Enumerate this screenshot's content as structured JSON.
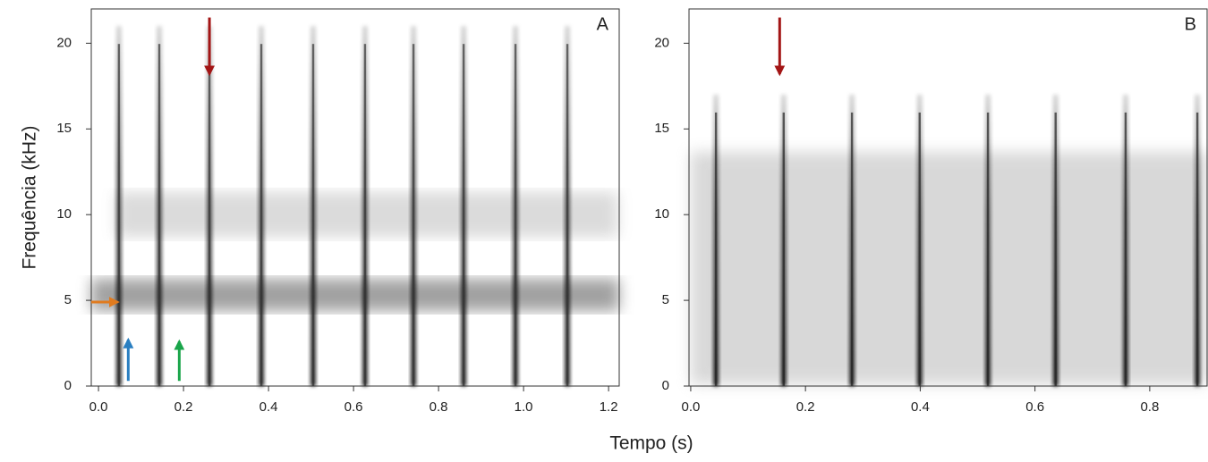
{
  "chart_data": [
    {
      "type": "spectrogram",
      "panel_label": "A",
      "ylabel": "Frequência (kHz)",
      "xlim": [
        -0.017,
        1.225
      ],
      "ylim": [
        0,
        22
      ],
      "xticks": [
        {
          "value": 0,
          "label": "0.0"
        },
        0.2,
        0.4,
        0.6,
        0.8,
        {
          "value": 1,
          "label": "1.0"
        },
        1.2
      ],
      "yticks": [
        0,
        5,
        10,
        15,
        20
      ],
      "pulse_times": [
        0.048,
        0.143,
        0.261,
        0.383,
        0.505,
        0.627,
        0.741,
        0.859,
        0.981,
        1.103
      ],
      "pulse_top": 21,
      "color": "#333333",
      "arrows": [
        {
          "color": "#a31515",
          "x": [
            0.261,
            0.261
          ],
          "y": [
            21.5,
            18.2
          ]
        },
        {
          "color": "#e07b1f",
          "x": [
            -0.017,
            0.045
          ],
          "y": [
            4.9,
            4.9
          ]
        },
        {
          "color": "#2a7fc1",
          "x": [
            0.07,
            0.07
          ],
          "y": [
            0.3,
            2.7
          ]
        },
        {
          "color": "#1aa54a",
          "x": [
            0.19,
            0.19
          ],
          "y": [
            0.3,
            2.6
          ]
        }
      ]
    },
    {
      "type": "spectrogram",
      "panel_label": "B",
      "xlim": [
        -0.003,
        0.9
      ],
      "ylim": [
        0,
        22
      ],
      "xticks": [
        {
          "value": 0,
          "label": "0.0"
        },
        0.2,
        0.4,
        0.6,
        0.8
      ],
      "yticks": [
        0,
        5,
        10,
        15,
        20
      ],
      "pulse_times": [
        0.044,
        0.162,
        0.281,
        0.399,
        0.518,
        0.636,
        0.758,
        0.883
      ],
      "pulse_top": 17,
      "color": "#222222",
      "arrows": [
        {
          "color": "#a31515",
          "x": [
            0.155,
            0.155
          ],
          "y": [
            21.5,
            18.2
          ]
        }
      ]
    }
  ],
  "shared_xlabel": "Tempo (s)"
}
